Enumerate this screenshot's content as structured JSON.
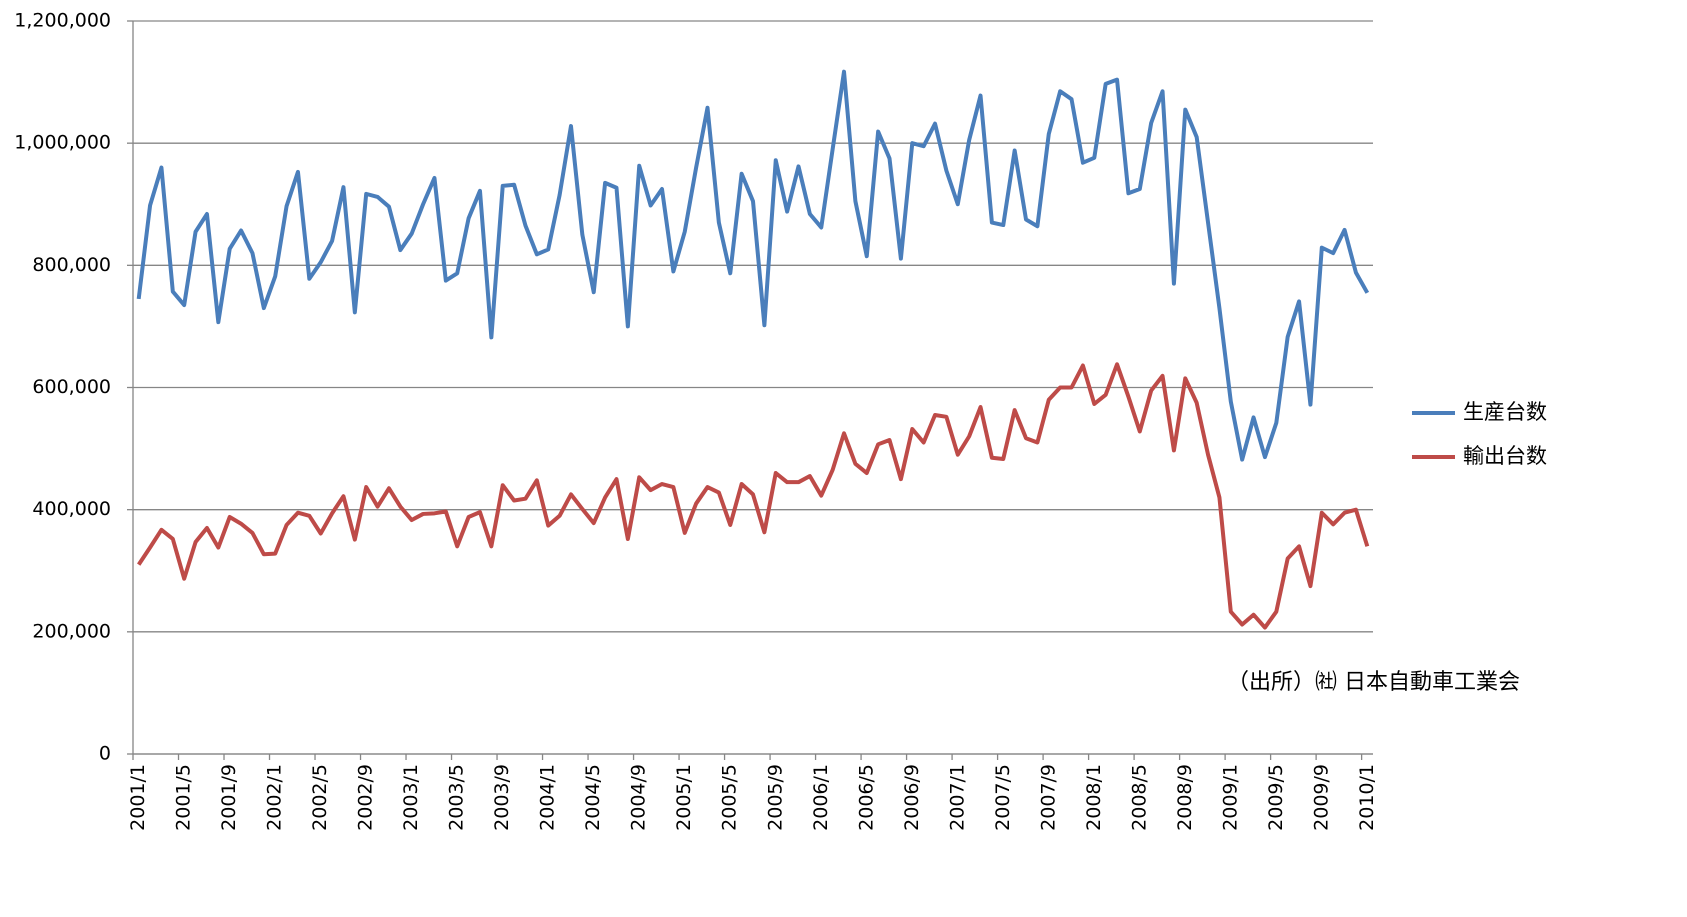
{
  "chart_data": {
    "type": "line",
    "categories": [
      "2001/1",
      null,
      null,
      null,
      "2001/5",
      null,
      null,
      null,
      "2001/9",
      null,
      null,
      null,
      "2002/1",
      null,
      null,
      null,
      "2002/5",
      null,
      null,
      null,
      "2002/9",
      null,
      null,
      null,
      "2003/1",
      null,
      null,
      null,
      "2003/5",
      null,
      null,
      null,
      "2003/9",
      null,
      null,
      null,
      "2004/1",
      null,
      null,
      null,
      "2004/5",
      null,
      null,
      null,
      "2004/9",
      null,
      null,
      null,
      "2005/1",
      null,
      null,
      null,
      "2005/5",
      null,
      null,
      null,
      "2005/9",
      null,
      null,
      null,
      "2006/1",
      null,
      null,
      null,
      "2006/5",
      null,
      null,
      null,
      "2006/9",
      null,
      null,
      null,
      "2007/1",
      null,
      null,
      null,
      "2007/5",
      null,
      null,
      null,
      "2007/9",
      null,
      null,
      null,
      "2008/1",
      null,
      null,
      null,
      "2008/5",
      null,
      null,
      null,
      "2008/9",
      null,
      null,
      null,
      "2009/1",
      null,
      null,
      null,
      "2009/5",
      null,
      null,
      null,
      "2009/9",
      null,
      null,
      null,
      "2010/1"
    ],
    "series": [
      {
        "name": "生産台数",
        "color": "#4a7ebb",
        "values": [
          745000,
          898000,
          960000,
          757000,
          735000,
          855000,
          884000,
          707000,
          827000,
          857000,
          820000,
          730000,
          782000,
          897000,
          953000,
          778000,
          805000,
          840000,
          928000,
          723000,
          917000,
          912000,
          896000,
          825000,
          852000,
          900000,
          943000,
          775000,
          787000,
          877000,
          922000,
          682000,
          930000,
          932000,
          865000,
          818000,
          826000,
          915000,
          1028000,
          850000,
          756000,
          935000,
          927000,
          700000,
          963000,
          898000,
          925000,
          790000,
          855000,
          960000,
          1058000,
          870000,
          787000,
          950000,
          905000,
          702000,
          972000,
          888000,
          962000,
          884000,
          862000,
          990000,
          1117000,
          905000,
          815000,
          1019000,
          975000,
          811000,
          1000000,
          995000,
          1032000,
          955000,
          900000,
          1005000,
          1078000,
          870000,
          866000,
          988000,
          875000,
          864000,
          1015000,
          1085000,
          1072000,
          968000,
          976000,
          1097000,
          1104000,
          918000,
          925000,
          1033000,
          1085000,
          770000,
          1055000,
          1010000,
          870000,
          730000,
          577000,
          482000,
          551000,
          486000,
          542000,
          683000,
          741000,
          572000,
          829000,
          820000,
          858000,
          788000,
          755000
        ]
      },
      {
        "name": "輸出台数",
        "color": "#be4b48",
        "values": [
          310000,
          338000,
          367000,
          352000,
          287000,
          347000,
          370000,
          338000,
          388000,
          377000,
          362000,
          327000,
          328000,
          375000,
          395000,
          390000,
          361000,
          394000,
          422000,
          351000,
          437000,
          405000,
          435000,
          405000,
          383000,
          393000,
          394000,
          397000,
          340000,
          388000,
          396000,
          340000,
          440000,
          415000,
          418000,
          448000,
          374000,
          390000,
          425000,
          401000,
          378000,
          420000,
          450000,
          352000,
          453000,
          432000,
          442000,
          437000,
          362000,
          410000,
          437000,
          428000,
          375000,
          442000,
          425000,
          363000,
          460000,
          445000,
          445000,
          455000,
          423000,
          465000,
          525000,
          475000,
          460000,
          507000,
          514000,
          450000,
          532000,
          510000,
          555000,
          552000,
          490000,
          520000,
          568000,
          485000,
          483000,
          563000,
          517000,
          510000,
          580000,
          600000,
          600000,
          636000,
          573000,
          588000,
          638000,
          585000,
          528000,
          595000,
          619000,
          497000,
          615000,
          575000,
          490000,
          420000,
          233000,
          212000,
          228000,
          207000,
          233000,
          320000,
          340000,
          275000,
          395000,
          376000,
          395000,
          400000,
          340000
        ]
      }
    ],
    "ylim": [
      0,
      1200000
    ],
    "yticks": [
      0,
      {
        "value": 200000,
        "label": "200,000"
      },
      {
        "value": 400000,
        "label": "400,000"
      },
      {
        "value": 600000,
        "label": "600,000"
      },
      {
        "value": 800000,
        "label": "800,000"
      },
      {
        "value": 1000000,
        "label": "1,000,000"
      },
      {
        "value": 1200000,
        "label": "1,200,000"
      }
    ],
    "grid": true,
    "legend": "right",
    "annotation": "（出所）㈳ 日本自動車工業会"
  }
}
